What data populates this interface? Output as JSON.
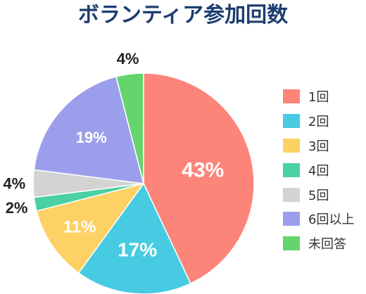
{
  "chart_data": {
    "type": "pie",
    "title": "ボランティア参加回数",
    "slices": [
      {
        "label": "1回",
        "value": 43,
        "value_label": "43%",
        "color": "#fd8479"
      },
      {
        "label": "2回",
        "value": 17,
        "value_label": "17%",
        "color": "#47cbe2"
      },
      {
        "label": "3回",
        "value": 11,
        "value_label": "11%",
        "color": "#fdd164"
      },
      {
        "label": "4回",
        "value": 2,
        "value_label": "2%",
        "color": "#4ccfa4"
      },
      {
        "label": "5回",
        "value": 4,
        "value_label": "4%",
        "color": "#d3d3d3"
      },
      {
        "label": "6回以上",
        "value": 19,
        "value_label": "19%",
        "color": "#9b9feb"
      },
      {
        "label": "未回答",
        "value": 4,
        "value_label": "4%",
        "color": "#66d46c"
      }
    ],
    "start": "12 o'clock",
    "direction": "clockwise",
    "legend_position": "right"
  }
}
